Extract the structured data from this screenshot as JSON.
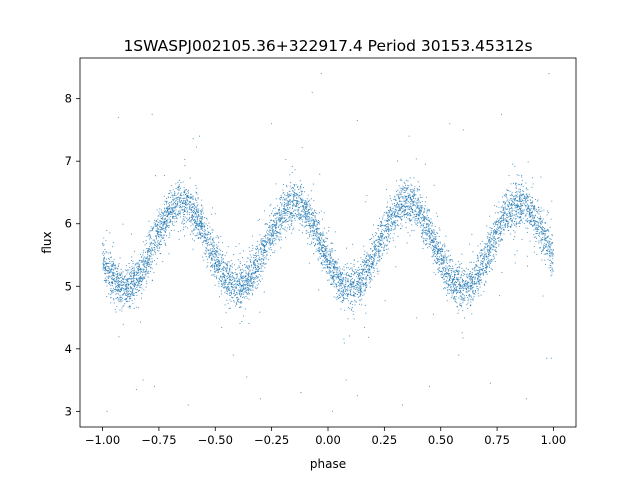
{
  "chart_data": {
    "type": "scatter",
    "title": "1SWASPJ002105.36+322917.4 Period 30153.45312s",
    "xlabel": "phase",
    "ylabel": "flux",
    "xlim": [
      -1.1,
      1.1
    ],
    "ylim": [
      2.75,
      8.65
    ],
    "xticks": [
      -1.0,
      -0.75,
      -0.5,
      -0.25,
      0.0,
      0.25,
      0.5,
      0.75,
      1.0
    ],
    "xtick_labels": [
      "−1.00",
      "−0.75",
      "−0.50",
      "−0.25",
      "0.00",
      "0.25",
      "0.50",
      "0.75",
      "1.00"
    ],
    "yticks": [
      3,
      4,
      5,
      6,
      7,
      8
    ],
    "ytick_labels": [
      "3",
      "4",
      "5",
      "6",
      "7",
      "8"
    ],
    "grid": false,
    "marker_color": "#1f77b4",
    "series": [
      {
        "model": "sinusoidal",
        "x_range": [
          -1.0,
          1.0
        ],
        "mean_flux": 5.65,
        "amplitude": 0.67,
        "cycles_per_unit_phase": 2,
        "peak_phases": [
          -0.65,
          -0.15,
          0.35,
          0.85
        ],
        "trough_phases": [
          -0.9,
          -0.4,
          0.1,
          0.6
        ],
        "scatter_sd": 0.17,
        "outlier_range": [
          3.0,
          8.45
        ],
        "points": [
          [
            -0.98,
            3.0
          ],
          [
            -0.85,
            3.35
          ],
          [
            -0.82,
            3.5
          ],
          [
            -0.77,
            3.4
          ],
          [
            -0.42,
            3.9
          ],
          [
            -0.36,
            3.55
          ],
          [
            -0.62,
            3.1
          ],
          [
            -0.3,
            3.2
          ],
          [
            -0.12,
            3.3
          ],
          [
            0.02,
            3.0
          ],
          [
            0.08,
            3.5
          ],
          [
            0.13,
            3.25
          ],
          [
            0.33,
            3.1
          ],
          [
            0.45,
            3.4
          ],
          [
            0.58,
            3.9
          ],
          [
            0.72,
            3.45
          ],
          [
            0.88,
            3.2
          ],
          [
            0.97,
            3.85
          ],
          [
            0.99,
            3.85
          ],
          [
            -0.78,
            7.75
          ],
          [
            -0.57,
            7.4
          ],
          [
            -0.25,
            7.6
          ],
          [
            -0.07,
            8.1
          ],
          [
            -0.03,
            8.4
          ],
          [
            0.36,
            7.4
          ],
          [
            0.54,
            7.6
          ],
          [
            0.6,
            7.5
          ],
          [
            0.77,
            7.75
          ],
          [
            0.98,
            8.4
          ],
          [
            -0.93,
            7.7
          ],
          [
            0.13,
            7.65
          ]
        ]
      }
    ]
  }
}
